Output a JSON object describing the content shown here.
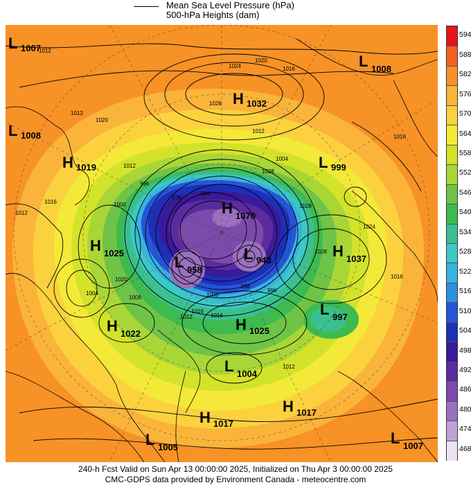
{
  "legend": {
    "line1": "Mean Sea Level Pressure (hPa)",
    "line2": "500-hPa Heights (dam)"
  },
  "colorbar": {
    "ticks": [
      "594",
      "588",
      "582",
      "576",
      "570",
      "564",
      "558",
      "552",
      "546",
      "540",
      "534",
      "528",
      "522",
      "516",
      "510",
      "504",
      "498",
      "492",
      "486",
      "480",
      "474",
      "468"
    ],
    "colors": [
      "#e8141c",
      "#f56020",
      "#f79226",
      "#fbb43a",
      "#fbd23e",
      "#f4e938",
      "#d3e22a",
      "#a9d637",
      "#6fc447",
      "#3dba50",
      "#3bbf8e",
      "#3cc8c5",
      "#39b2e0",
      "#2f8fe2",
      "#2555d9",
      "#1d2fb8",
      "#3a1a9a",
      "#5b2b9f",
      "#7b4aaa",
      "#9a70bf",
      "#bea2d6",
      "#ebe3f0"
    ]
  },
  "systems": [
    {
      "type": "L",
      "value": "1007"
    },
    {
      "type": "L",
      "value": "1008"
    },
    {
      "type": "H",
      "value": "1032"
    },
    {
      "type": "L",
      "value": "1008"
    },
    {
      "type": "H",
      "value": "1019"
    },
    {
      "type": "L",
      "value": "999"
    },
    {
      "type": "H",
      "value": "1070"
    },
    {
      "type": "H",
      "value": "1025"
    },
    {
      "type": "H",
      "value": "1037"
    },
    {
      "type": "L",
      "value": "958"
    },
    {
      "type": "L",
      "value": "943"
    },
    {
      "type": "L",
      "value": "997"
    },
    {
      "type": "H",
      "value": "1022"
    },
    {
      "type": "H",
      "value": "1025"
    },
    {
      "type": "L",
      "value": "1004"
    },
    {
      "type": "H",
      "value": "1017"
    },
    {
      "type": "H",
      "value": "1017"
    },
    {
      "type": "L",
      "value": "1005"
    },
    {
      "type": "L",
      "value": "1007"
    }
  ],
  "isobar_labels": [
    "1012",
    "1024",
    "1020",
    "1016",
    "1028",
    "1012",
    "1004",
    "1012",
    "1016",
    "1012",
    "1000",
    "996",
    "1024",
    "1016",
    "1028",
    "1016",
    "1020",
    "1008",
    "1000",
    "1016",
    "996",
    "1012",
    "1028",
    "1028",
    "1004",
    "1012",
    "1016",
    "1012",
    "1020",
    "976",
    "964",
    "988"
  ],
  "footer": {
    "line1": "240-h Fcst Valid on Sun Apr 13 00:00:00 2025, Initialized on Thu Apr  3 00:00:00 2025",
    "line2": "CMC-GDPS data provided by Environment Canada - meteocentre.com"
  }
}
